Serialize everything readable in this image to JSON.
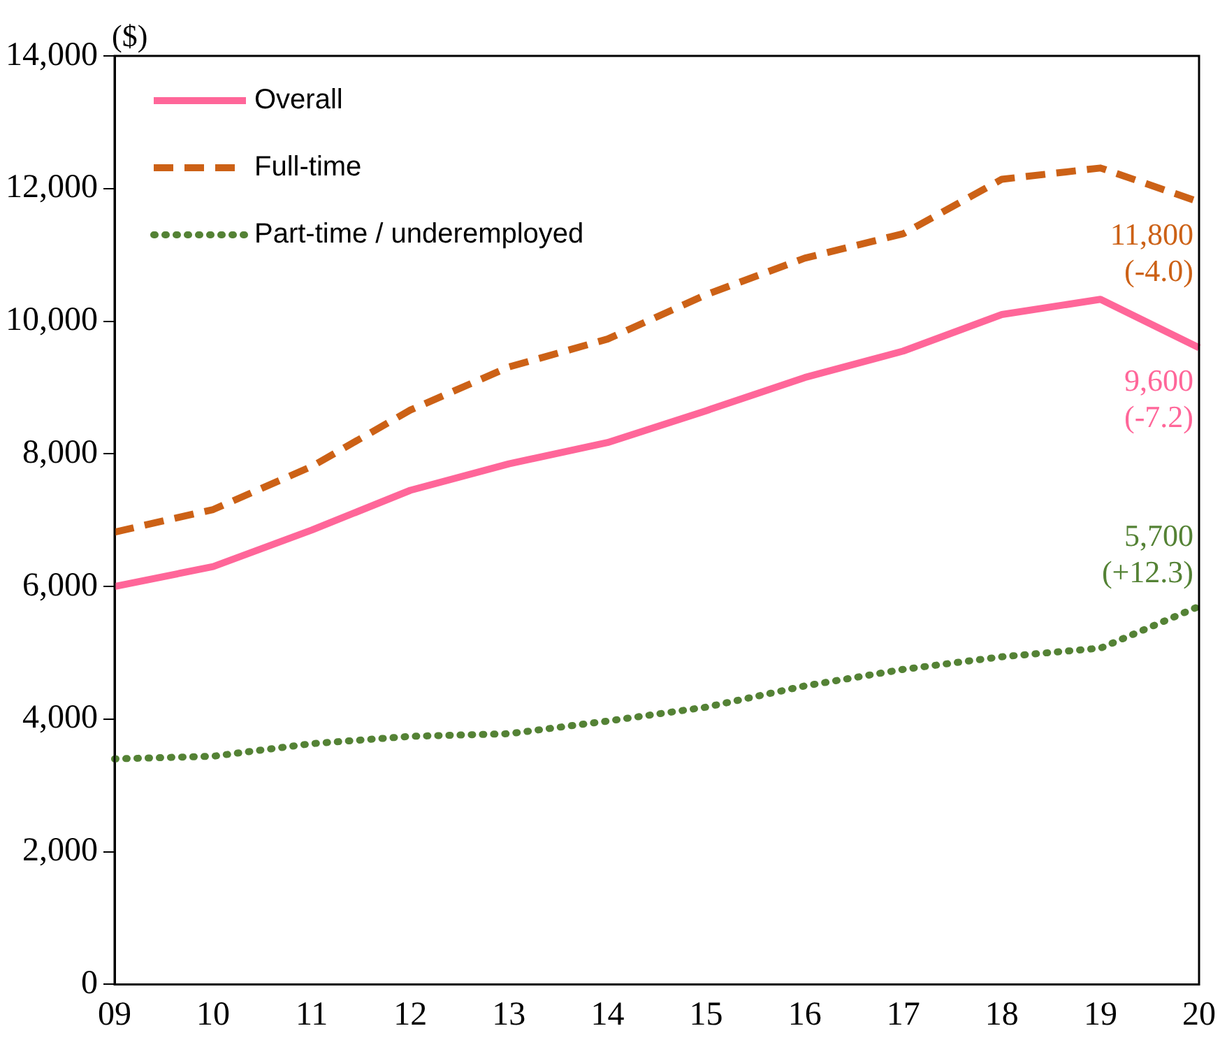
{
  "chart_data": {
    "type": "line",
    "ylabel": "($)",
    "categories": [
      "09",
      "10",
      "11",
      "12",
      "13",
      "14",
      "15",
      "16",
      "17",
      "18",
      "19",
      "20"
    ],
    "series": [
      {
        "name": "Overall",
        "color": "#ff6699",
        "line_style": "solid",
        "values": [
          6000,
          6300,
          6850,
          7450,
          7850,
          8170,
          8650,
          9150,
          9550,
          10100,
          10330,
          9600
        ],
        "value_labels": [
          null,
          null,
          null,
          null,
          null,
          null,
          null,
          null,
          null,
          null,
          null,
          "9,600\n(-7.2)"
        ]
      },
      {
        "name": "Full-time",
        "color": "#cc6116",
        "line_style": "dashed",
        "values": [
          6820,
          7160,
          7810,
          8660,
          9310,
          9730,
          10400,
          10950,
          11320,
          12140,
          12310,
          11800
        ],
        "value_labels": [
          null,
          null,
          null,
          null,
          null,
          null,
          null,
          null,
          null,
          null,
          null,
          "11,800\n(-4.0)"
        ]
      },
      {
        "name": "Part-time / underemployed",
        "color": "#548235",
        "line_style": "dotted",
        "values": [
          3400,
          3440,
          3630,
          3740,
          3780,
          3970,
          4180,
          4500,
          4750,
          4940,
          5070,
          5700
        ],
        "value_labels": [
          null,
          null,
          null,
          null,
          null,
          null,
          null,
          null,
          null,
          null,
          null,
          "5,700\n(+12.3)"
        ]
      }
    ],
    "ylim": [
      0,
      14000
    ],
    "yticks": [
      0,
      {
        "value": 2000,
        "label": "2,000"
      },
      {
        "value": 4000,
        "label": "4,000"
      },
      {
        "value": 6000,
        "label": "6,000"
      },
      {
        "value": 8000,
        "label": "8,000"
      },
      {
        "value": 10000,
        "label": "10,000"
      },
      {
        "value": 12000,
        "label": "12,000"
      },
      {
        "value": 14000,
        "label": "14,000"
      }
    ],
    "grid": false,
    "legend": "top left",
    "marker": "none"
  }
}
